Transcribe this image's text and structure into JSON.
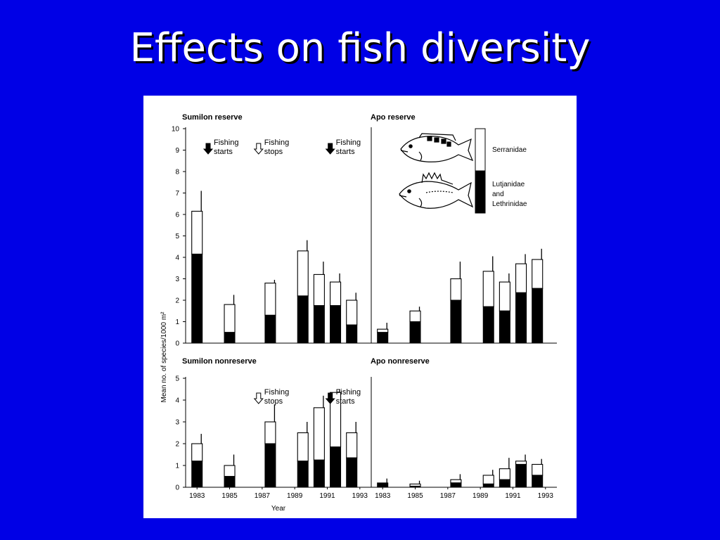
{
  "slide": {
    "title": "Effects on fish diversity"
  },
  "figure": {
    "ylabel": "Mean no. of species/1000 m²",
    "xlabel": "Year",
    "legend": {
      "top": "Serranidae",
      "bottom": [
        "Lutjanidae",
        "and",
        "Lethrinidae"
      ]
    },
    "colors": {
      "top": "#ffffff",
      "bottom": "#000000",
      "frame": "#000000"
    },
    "icons": [
      "grouper-fish-icon",
      "snapper-fish-icon"
    ]
  },
  "chart_data": [
    {
      "type": "bar",
      "title": "Sumilon reserve",
      "stacked": true,
      "x": [
        1983,
        1985,
        1987.5,
        1989.5,
        1990.5,
        1991.5,
        1992.5
      ],
      "series": [
        {
          "name": "Lutjanidae and Lethrinidae",
          "values": [
            4.15,
            0.5,
            1.3,
            2.2,
            1.75,
            1.75,
            0.85
          ]
        },
        {
          "name": "Serranidae",
          "values": [
            2.0,
            1.3,
            1.5,
            2.1,
            1.45,
            1.1,
            1.15
          ]
        }
      ],
      "error_tops": [
        7.1,
        2.25,
        2.95,
        4.8,
        3.8,
        3.25,
        2.35
      ],
      "ylim": [
        0,
        10
      ],
      "yticks": [
        0,
        1,
        2,
        3,
        4,
        5,
        6,
        7,
        8,
        9,
        10
      ],
      "annotations": [
        {
          "x": 1984.2,
          "arrow": "filled",
          "text": [
            "Fishing",
            "starts"
          ]
        },
        {
          "x": 1987.3,
          "arrow": "open",
          "text": [
            "Fishing",
            "stops"
          ]
        },
        {
          "x": 1991.7,
          "arrow": "filled",
          "text": [
            "Fishing",
            "starts"
          ]
        }
      ]
    },
    {
      "type": "bar",
      "title": "Apo reserve",
      "stacked": true,
      "x": [
        1983,
        1985,
        1987.5,
        1989.5,
        1990.5,
        1991.5,
        1992.5
      ],
      "series": [
        {
          "name": "Lutjanidae and Lethrinidae",
          "values": [
            0.5,
            1.0,
            2.0,
            1.7,
            1.5,
            2.35,
            2.55
          ]
        },
        {
          "name": "Serranidae",
          "values": [
            0.15,
            0.5,
            1.0,
            1.65,
            1.35,
            1.35,
            1.35
          ]
        }
      ],
      "error_tops": [
        0.95,
        1.7,
        3.8,
        4.05,
        3.25,
        4.15,
        4.4
      ],
      "ylim": [
        0,
        10
      ]
    },
    {
      "type": "bar",
      "title": "Sumilon nonreserve",
      "stacked": true,
      "x": [
        1983,
        1985,
        1987.5,
        1989.5,
        1990.5,
        1991.5,
        1992.5
      ],
      "series": [
        {
          "name": "Lutjanidae and Lethrinidae",
          "values": [
            1.2,
            0.5,
            2.0,
            1.2,
            1.25,
            1.85,
            1.35
          ]
        },
        {
          "name": "Serranidae",
          "values": [
            0.8,
            0.5,
            1.0,
            1.3,
            2.4,
            2.5,
            1.15
          ]
        }
      ],
      "error_tops": [
        2.45,
        1.5,
        3.8,
        3.0,
        4.2,
        4.5,
        3.0
      ],
      "ylim": [
        0,
        5
      ],
      "yticks": [
        0,
        1,
        2,
        3,
        4,
        5
      ],
      "xticks": [
        "1983",
        "1985",
        "1987",
        "1989",
        "1991",
        "1993"
      ],
      "annotations": [
        {
          "x": 1987.3,
          "arrow": "open",
          "text": [
            "Fishing",
            "stops"
          ]
        },
        {
          "x": 1991.7,
          "arrow": "filled",
          "text": [
            "Fishing",
            "starts"
          ]
        }
      ]
    },
    {
      "type": "bar",
      "title": "Apo nonreserve",
      "stacked": true,
      "x": [
        1983,
        1985,
        1987.5,
        1989.5,
        1990.5,
        1991.5,
        1992.5
      ],
      "series": [
        {
          "name": "Lutjanidae and Lethrinidae",
          "values": [
            0.2,
            0.05,
            0.2,
            0.15,
            0.35,
            1.05,
            0.55
          ]
        },
        {
          "name": "Serranidae",
          "values": [
            0.0,
            0.1,
            0.15,
            0.4,
            0.5,
            0.15,
            0.5
          ]
        }
      ],
      "error_tops": [
        0.4,
        0.3,
        0.6,
        0.8,
        1.35,
        1.5,
        1.3
      ],
      "ylim": [
        0,
        5
      ],
      "xticks": [
        "1983",
        "1985",
        "1987",
        "1989",
        "1991",
        "1993"
      ]
    }
  ]
}
